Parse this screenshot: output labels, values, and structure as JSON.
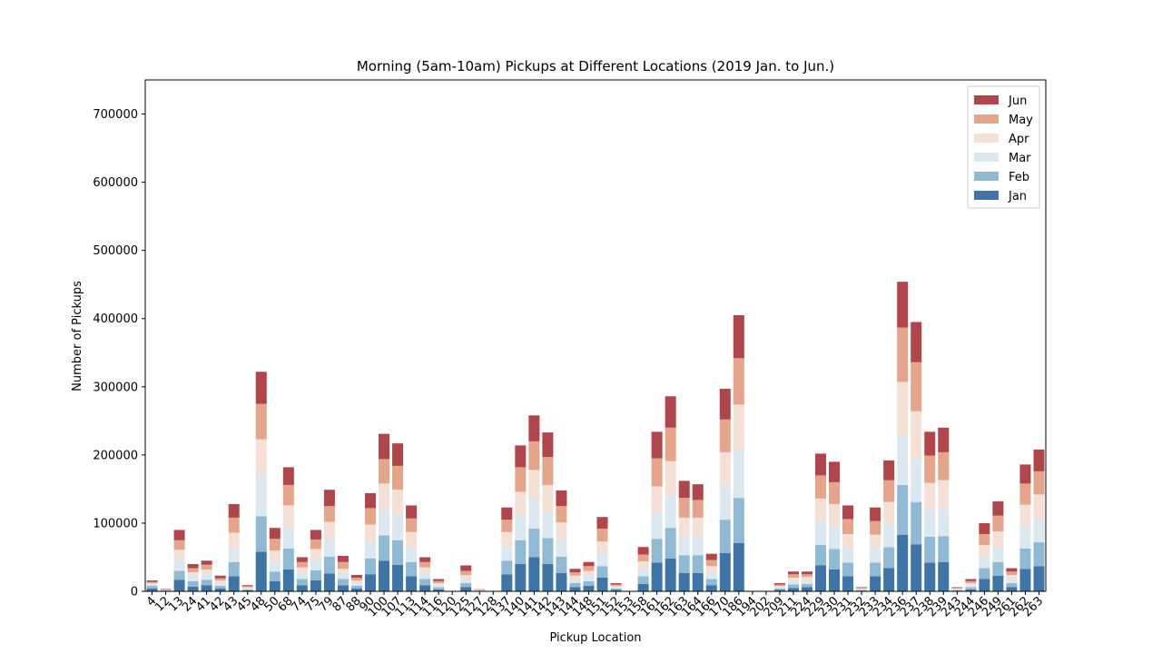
{
  "chart_data": {
    "type": "bar",
    "stacked": true,
    "title": "Morning (5am-10am) Pickups at Different Locations (2019 Jan. to Jun.)",
    "xlabel": "Pickup Location",
    "ylabel": "Number of Pickups",
    "ylim": [
      0,
      750000
    ],
    "yticks": [
      0,
      100000,
      200000,
      300000,
      400000,
      500000,
      600000,
      700000
    ],
    "grid": false,
    "legend_position": "top-right",
    "categories": [
      "4",
      "12",
      "13",
      "24",
      "41",
      "42",
      "43",
      "45",
      "48",
      "50",
      "68",
      "74",
      "75",
      "79",
      "87",
      "88",
      "90",
      "100",
      "107",
      "113",
      "114",
      "116",
      "120",
      "125",
      "127",
      "128",
      "137",
      "140",
      "141",
      "142",
      "143",
      "144",
      "148",
      "151",
      "152",
      "153",
      "158",
      "161",
      "162",
      "163",
      "164",
      "166",
      "170",
      "186",
      "194",
      "202",
      "209",
      "211",
      "224",
      "229",
      "230",
      "231",
      "232",
      "233",
      "234",
      "236",
      "237",
      "238",
      "239",
      "243",
      "244",
      "246",
      "249",
      "261",
      "262",
      "263"
    ],
    "series": [
      {
        "name": "Jan",
        "color": "#3f74a6",
        "values": [
          4000,
          1000,
          17000,
          7000,
          9000,
          4000,
          22000,
          1500,
          58000,
          15000,
          32000,
          9000,
          16000,
          26000,
          9000,
          4000,
          25000,
          45000,
          39000,
          22000,
          9000,
          3000,
          0,
          6000,
          500,
          0,
          25000,
          40000,
          50000,
          40000,
          27000,
          6000,
          8000,
          20000,
          2000,
          0,
          11000,
          42000,
          48000,
          27000,
          27000,
          9000,
          56000,
          71000,
          0,
          0,
          2000,
          5000,
          6000,
          38000,
          32000,
          22000,
          1000,
          22000,
          34000,
          83000,
          69000,
          42000,
          43000,
          1000,
          3000,
          18000,
          23000,
          6000,
          33000,
          37000
        ]
      },
      {
        "name": "Feb",
        "color": "#90bad3",
        "values": [
          4000,
          1000,
          13000,
          8000,
          8000,
          4000,
          21000,
          1500,
          52000,
          14000,
          31000,
          9000,
          15000,
          25000,
          9000,
          4000,
          23000,
          37000,
          36000,
          21000,
          9000,
          3000,
          0,
          6000,
          500,
          0,
          20000,
          35000,
          42000,
          38000,
          24000,
          6000,
          7000,
          17000,
          2000,
          0,
          11000,
          35000,
          45000,
          26000,
          26000,
          9000,
          49000,
          66000,
          0,
          0,
          2000,
          5000,
          5000,
          30000,
          30000,
          20000,
          1000,
          20000,
          31000,
          73000,
          62000,
          38000,
          38000,
          1000,
          3000,
          16000,
          20000,
          6000,
          30000,
          35000
        ]
      },
      {
        "name": "Mar",
        "color": "#dce8f0",
        "values": [
          2000,
          500,
          16000,
          7000,
          8000,
          4000,
          21000,
          1500,
          62000,
          14000,
          33000,
          9000,
          15000,
          26000,
          8000,
          4000,
          25000,
          38000,
          38000,
          21000,
          9000,
          3000,
          0,
          6000,
          500,
          0,
          21000,
          36000,
          44000,
          38000,
          26000,
          5000,
          8000,
          18000,
          2000,
          0,
          11000,
          39000,
          48000,
          27000,
          27000,
          9000,
          52000,
          70000,
          0,
          0,
          2000,
          5000,
          5000,
          35000,
          32000,
          21000,
          1000,
          21000,
          33000,
          72000,
          63000,
          40000,
          40000,
          1000,
          3000,
          17000,
          21000,
          6000,
          33000,
          34000
        ]
      },
      {
        "name": "Apr",
        "color": "#f5e0d6",
        "values": [
          2000,
          500,
          15000,
          6000,
          7000,
          4000,
          22000,
          1500,
          51000,
          17000,
          30000,
          8000,
          16000,
          25000,
          7000,
          4000,
          25000,
          38000,
          36000,
          23000,
          8000,
          3000,
          0,
          6000,
          500,
          0,
          21000,
          35000,
          42000,
          40000,
          24000,
          6000,
          7000,
          18000,
          2000,
          0,
          11000,
          38000,
          50000,
          28000,
          28000,
          10000,
          47000,
          67000,
          0,
          0,
          2000,
          5000,
          5000,
          33000,
          34000,
          21000,
          1000,
          20000,
          33000,
          79000,
          70000,
          39000,
          42000,
          1000,
          3000,
          17000,
          24000,
          6000,
          31000,
          36000
        ]
      },
      {
        "name": "May",
        "color": "#e4a58a",
        "values": [
          2000,
          500,
          14000,
          6000,
          7000,
          3000,
          22000,
          1500,
          52000,
          17000,
          30000,
          8000,
          14000,
          23000,
          10000,
          4000,
          24000,
          36000,
          35000,
          20000,
          8000,
          3000,
          0,
          6000,
          500,
          0,
          18000,
          36000,
          42000,
          41000,
          24000,
          5000,
          7000,
          19000,
          2000,
          0,
          10000,
          41000,
          49000,
          29000,
          26000,
          9000,
          48000,
          68000,
          0,
          0,
          2000,
          5000,
          4000,
          34000,
          32000,
          22000,
          1000,
          20000,
          32000,
          80000,
          72000,
          40000,
          41000,
          1000,
          3000,
          16000,
          23000,
          5000,
          31000,
          34000
        ]
      },
      {
        "name": "Jun",
        "color": "#b0464b",
        "values": [
          2000,
          500,
          15000,
          6000,
          6000,
          4000,
          20000,
          1500,
          47000,
          16000,
          26000,
          7000,
          14000,
          24000,
          9000,
          4000,
          22000,
          37000,
          33000,
          19000,
          7000,
          3000,
          0,
          8000,
          500,
          0,
          18000,
          32000,
          38000,
          36000,
          23000,
          5000,
          6000,
          17000,
          2000,
          0,
          11000,
          39000,
          46000,
          25000,
          23000,
          9000,
          45000,
          63000,
          0,
          0,
          2000,
          4000,
          4000,
          32000,
          30000,
          20000,
          1000,
          20000,
          29000,
          67000,
          59000,
          35000,
          36000,
          1000,
          3000,
          16000,
          21000,
          5000,
          28000,
          32000
        ]
      }
    ]
  }
}
